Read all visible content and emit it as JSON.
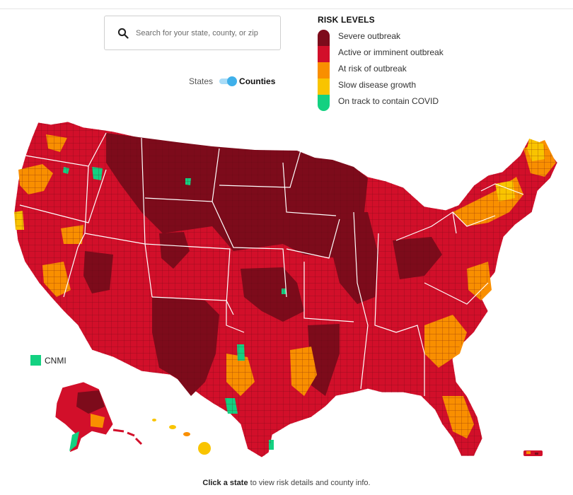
{
  "search": {
    "placeholder": "Search for your state, county, or zip",
    "icon": "search-icon"
  },
  "toggle": {
    "left_label": "States",
    "right_label": "Counties",
    "selected": "Counties"
  },
  "legend": {
    "title": "RISK LEVELS",
    "levels": [
      {
        "label": "Severe outbreak",
        "color": "#7d0b1b"
      },
      {
        "label": "Active or imminent outbreak",
        "color": "#d20f2a"
      },
      {
        "label": "At risk of outbreak",
        "color": "#f98f00"
      },
      {
        "label": "Slow disease growth",
        "color": "#f9c400"
      },
      {
        "label": "On track to contain COVID",
        "color": "#13d181"
      }
    ]
  },
  "territory": {
    "label": "CNMI",
    "color": "#13d181"
  },
  "footer": {
    "bold": "Click a state",
    "rest": " to view risk details and county info."
  }
}
